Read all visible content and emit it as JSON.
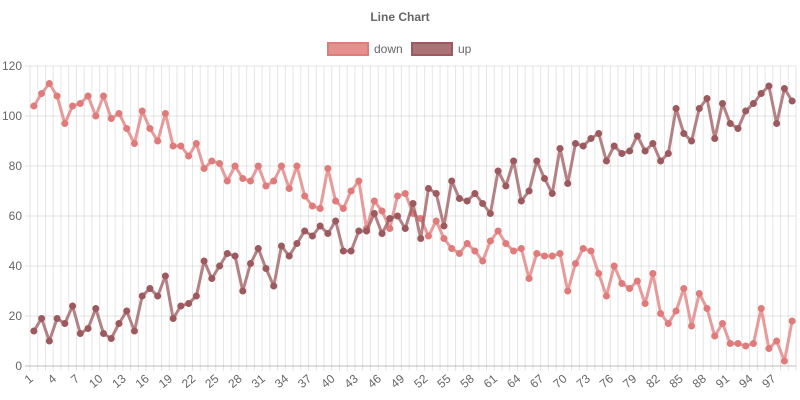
{
  "chart_data": {
    "type": "line",
    "title": "Line Chart",
    "xlabel": "",
    "ylabel": "",
    "ylim": [
      0,
      120
    ],
    "y_ticks": [
      0,
      20,
      40,
      60,
      80,
      100,
      120
    ],
    "grid": true,
    "legend_position": "top",
    "x": [
      1,
      2,
      3,
      4,
      5,
      6,
      7,
      8,
      9,
      10,
      11,
      12,
      13,
      14,
      15,
      16,
      17,
      18,
      19,
      20,
      21,
      22,
      23,
      24,
      25,
      26,
      27,
      28,
      29,
      30,
      31,
      32,
      33,
      34,
      35,
      36,
      37,
      38,
      39,
      40,
      41,
      42,
      43,
      44,
      45,
      46,
      47,
      48,
      49,
      50,
      51,
      52,
      53,
      54,
      55,
      56,
      57,
      58,
      59,
      60,
      61,
      62,
      63,
      64,
      65,
      66,
      67,
      68,
      69,
      70,
      71,
      72,
      73,
      74,
      75,
      76,
      77,
      78,
      79,
      80,
      81,
      82,
      83,
      84,
      85,
      86,
      87,
      88,
      89,
      90,
      91,
      92,
      93,
      94,
      95,
      96,
      97,
      98,
      99
    ],
    "x_tick_labels": [
      1,
      4,
      7,
      10,
      13,
      16,
      19,
      22,
      25,
      28,
      31,
      34,
      37,
      40,
      43,
      46,
      49,
      52,
      55,
      58,
      61,
      64,
      67,
      70,
      73,
      76,
      79,
      82,
      85,
      88,
      91,
      94,
      97
    ],
    "series": [
      {
        "name": "down",
        "color": "#e07b7b",
        "values": [
          104,
          109,
          113,
          108,
          97,
          104,
          105,
          108,
          100,
          108,
          99,
          101,
          95,
          89,
          102,
          95,
          90,
          101,
          88,
          88,
          84,
          89,
          79,
          82,
          81,
          74,
          80,
          75,
          74,
          80,
          72,
          74,
          80,
          71,
          80,
          68,
          64,
          63,
          79,
          66,
          63,
          70,
          74,
          55,
          66,
          62,
          55,
          68,
          69,
          61,
          59,
          52,
          58,
          51,
          47,
          45,
          49,
          46,
          42,
          50,
          54,
          49,
          46,
          47,
          35,
          45,
          44,
          44,
          45,
          30,
          41,
          47,
          46,
          37,
          28,
          40,
          33,
          31,
          34,
          25,
          37,
          21,
          17,
          22,
          31,
          16,
          29,
          23,
          12,
          17,
          9,
          9,
          8,
          9,
          23,
          7,
          10,
          2,
          18
        ]
      },
      {
        "name": "up",
        "color": "#9c5a5e",
        "values": [
          14,
          19,
          10,
          19,
          17,
          24,
          13,
          15,
          23,
          13,
          11,
          17,
          22,
          14,
          28,
          31,
          28,
          36,
          19,
          24,
          25,
          28,
          42,
          35,
          40,
          45,
          44,
          30,
          41,
          47,
          39,
          32,
          48,
          44,
          49,
          54,
          52,
          56,
          53,
          58,
          46,
          46,
          54,
          54,
          61,
          53,
          59,
          60,
          55,
          65,
          51,
          71,
          69,
          56,
          74,
          67,
          66,
          69,
          65,
          61,
          78,
          72,
          82,
          66,
          70,
          82,
          75,
          69,
          87,
          73,
          89,
          88,
          91,
          93,
          82,
          88,
          85,
          86,
          92,
          86,
          89,
          82,
          85,
          103,
          93,
          90,
          103,
          107,
          91,
          105,
          97,
          95,
          102,
          105,
          109,
          112,
          97,
          111,
          106
        ]
      }
    ]
  }
}
